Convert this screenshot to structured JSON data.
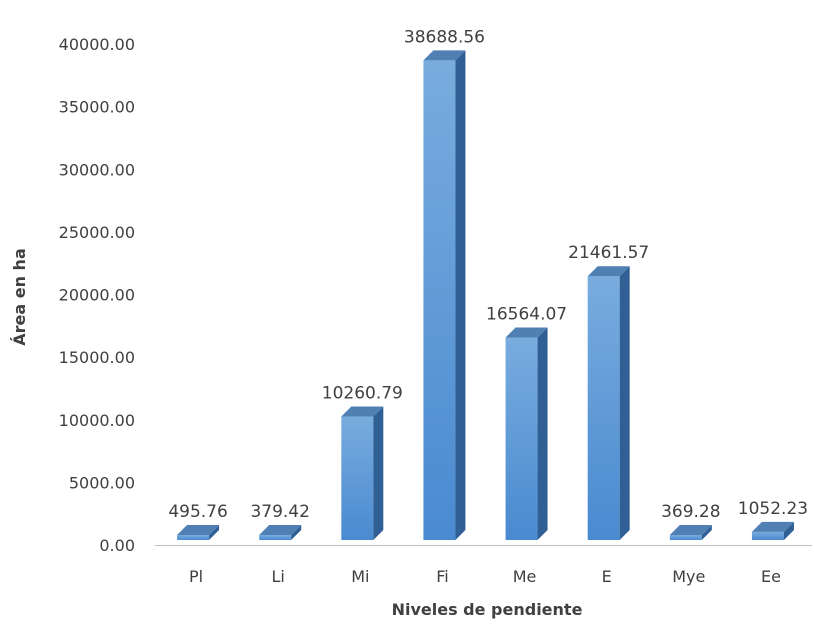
{
  "chart_data": {
    "type": "bar",
    "categories": [
      "Pl",
      "Li",
      "Mi",
      "Fi",
      "Me",
      "E",
      "Mye",
      "Ee"
    ],
    "values": [
      495.76,
      379.42,
      10260.79,
      38688.56,
      16564.07,
      21461.57,
      369.28,
      1052.23
    ],
    "data_labels": [
      "495.76",
      "379.42",
      "10260.79",
      "38688.56",
      "16564.07",
      "21461.57",
      "369.28",
      "1052.23"
    ],
    "xlabel": "Niveles de pendiente",
    "ylabel": "Área en ha",
    "ylim": [
      0,
      40000
    ],
    "yticks": [
      0,
      5000,
      10000,
      15000,
      20000,
      25000,
      30000,
      35000,
      40000
    ],
    "ytick_labels": [
      "0.00",
      "5000.00",
      "10000.00",
      "15000.00",
      "20000.00",
      "25000.00",
      "30000.00",
      "35000.00",
      "40000.00"
    ],
    "grid": false,
    "style": "3d-column",
    "colors": {
      "bar_front_light": "#6fa8dc",
      "bar_front_dark": "#4a86c6",
      "bar_top": "#4f7fb3",
      "bar_side": "#2f5f94",
      "axis": "#bfbfbf",
      "text": "#404040"
    }
  }
}
